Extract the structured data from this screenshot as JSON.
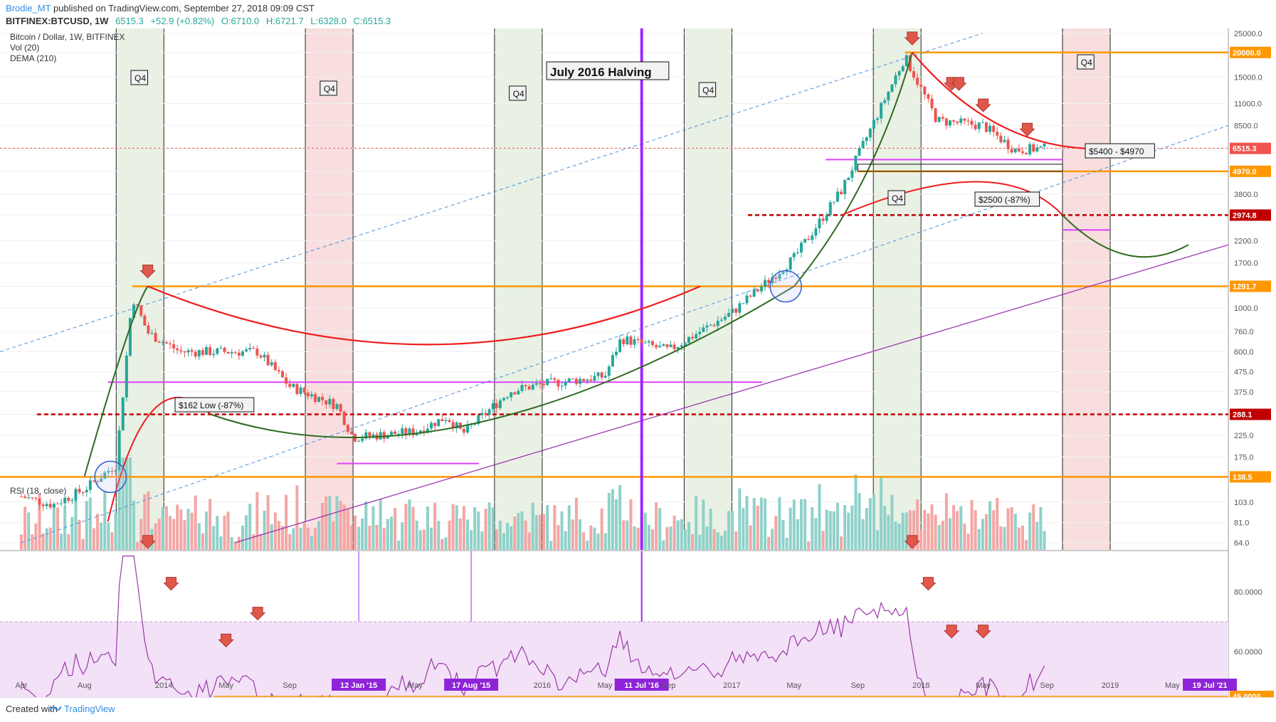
{
  "header": {
    "author": "Brodie_MT",
    "published": "published on TradingView.com, September 27, 2018 09:09 CST",
    "symbol": "BITFINEX:BTCUSD, 1W",
    "last": "6515.3",
    "change": "+52.9 (+0.82%)",
    "open": "O:6710.0",
    "high": "H:6721.7",
    "low": "L:6328.0",
    "close": "C:6515.3"
  },
  "legend": {
    "title": "Bitcoin / Dollar, 1W, BITFINEX",
    "vol": "Vol (20)",
    "dema": "DEMA (210)",
    "rsi": "RSI (18, close)"
  },
  "footer": {
    "created": "Created with",
    "brand": "TradingView"
  },
  "colors": {
    "up": "#26a69a",
    "down": "#ef5350",
    "orange": "#ff9800",
    "magenta": "#e040fb",
    "red": "#ee1c1c",
    "green": "#2e6b1f",
    "purple": "#9c27b0",
    "halving": "#9c27ff"
  },
  "chart_data": {
    "type": "candlestick",
    "scale": "log",
    "price_axis_ticks": [
      25000,
      20000,
      15000,
      11000,
      8500,
      6500,
      4970,
      3800,
      2974.8,
      2200,
      1700,
      1291.7,
      1000,
      760,
      600,
      475,
      375,
      288.1,
      225,
      175,
      138.5,
      103,
      81,
      64
    ],
    "price_axis_labels": [
      "25000.0",
      "20000.0",
      "15000.0",
      "11000.0",
      "8500.0",
      "6515.3",
      "4970.0",
      "3800.0",
      "2974.8",
      "2200.0",
      "1700.0",
      "1291.7",
      "1000.0",
      "760.0",
      "600.0",
      "475.0",
      "375.0",
      "288.1",
      "225.0",
      "175.0",
      "138.5",
      "103.0",
      "81.0",
      "64.0"
    ],
    "highlighted_levels": [
      {
        "value": 20000.0,
        "label": "20000.0",
        "color": "#ff9800"
      },
      {
        "value": 6515.3,
        "label": "6515.3",
        "color": "#ef5350"
      },
      {
        "value": 4970.0,
        "label": "4970.0",
        "color": "#ff9800"
      },
      {
        "value": 2974.8,
        "label": "2974.8",
        "color": "#c00000"
      },
      {
        "value": 1291.7,
        "label": "1291.7",
        "color": "#ff9800"
      },
      {
        "value": 288.1,
        "label": "288.1",
        "color": "#c00000"
      },
      {
        "value": 138.5,
        "label": "138.5",
        "color": "#ff9800"
      }
    ],
    "time_labels": [
      "Apr",
      "Aug",
      "2014",
      "May",
      "Sep",
      "12 Jan '15",
      "May",
      "17 Aug '15",
      "2016",
      "May",
      "11 Jul '16",
      "Sep",
      "2017",
      "May",
      "Sep",
      "2018",
      "May",
      "Sep",
      "2019",
      "May",
      "19 Jul '21"
    ],
    "rsi_axis_labels": [
      "80.0000",
      "60.0000",
      "45.0000",
      "40.0000"
    ],
    "annotations": {
      "halving": "July 2016 Halving",
      "q4": "Q4",
      "low162": "$162 Low (-87%)",
      "range5400": "$5400 - $4970",
      "target2500": "$2500 (-87%)"
    },
    "price_series_weekly_close_approx": [
      {
        "date": "2013-04",
        "close": 110
      },
      {
        "date": "2013-06",
        "close": 100
      },
      {
        "date": "2013-08",
        "close": 120
      },
      {
        "date": "2013-10",
        "close": 160
      },
      {
        "date": "2013-11",
        "close": 1150
      },
      {
        "date": "2013-12",
        "close": 750
      },
      {
        "date": "2014-02",
        "close": 600
      },
      {
        "date": "2014-05",
        "close": 600
      },
      {
        "date": "2014-07",
        "close": 600
      },
      {
        "date": "2014-09",
        "close": 400
      },
      {
        "date": "2014-12",
        "close": 320
      },
      {
        "date": "2015-01",
        "close": 220
      },
      {
        "date": "2015-05",
        "close": 235
      },
      {
        "date": "2015-07",
        "close": 280
      },
      {
        "date": "2015-08",
        "close": 230
      },
      {
        "date": "2015-11",
        "close": 380
      },
      {
        "date": "2016-01",
        "close": 410
      },
      {
        "date": "2016-05",
        "close": 450
      },
      {
        "date": "2016-06",
        "close": 700
      },
      {
        "date": "2016-09",
        "close": 610
      },
      {
        "date": "2017-01",
        "close": 950
      },
      {
        "date": "2017-05",
        "close": 1800
      },
      {
        "date": "2017-08",
        "close": 4000
      },
      {
        "date": "2017-12",
        "close": 19000
      },
      {
        "date": "2018-02",
        "close": 9000
      },
      {
        "date": "2018-05",
        "close": 8500
      },
      {
        "date": "2018-07",
        "close": 6400
      },
      {
        "date": "2018-09",
        "close": 6515.3
      }
    ]
  }
}
